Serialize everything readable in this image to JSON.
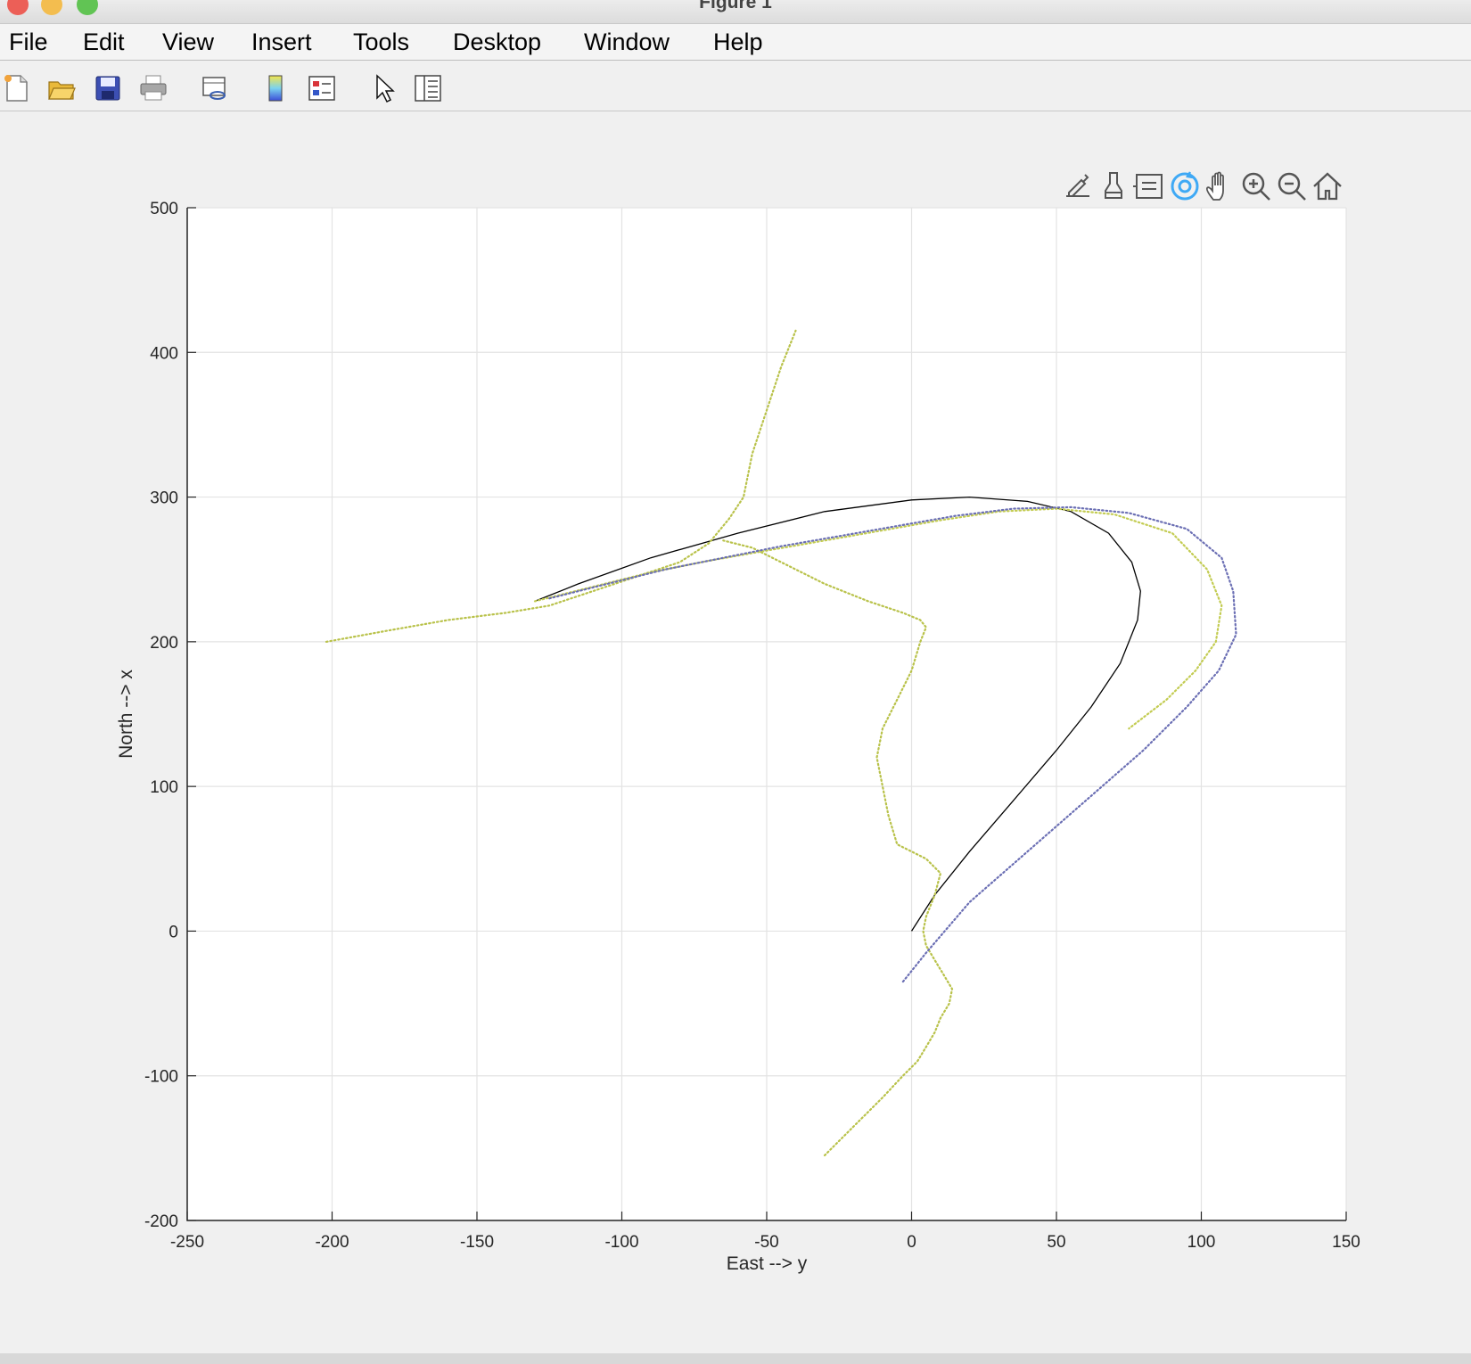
{
  "window": {
    "title": "Figure 1"
  },
  "menu": {
    "items": [
      "File",
      "Edit",
      "View",
      "Insert",
      "Tools",
      "Desktop",
      "Window",
      "Help"
    ]
  },
  "toolbar": {
    "icons": [
      "new-figure-icon",
      "open-file-icon",
      "save-icon",
      "print-icon",
      "link-plot-icon",
      "insert-colorbar-icon",
      "insert-legend-icon",
      "edit-plot-icon",
      "property-inspector-icon"
    ]
  },
  "axes_toolbar": {
    "icons": [
      "brush-export-icon",
      "data-brush-icon",
      "data-tips-icon",
      "rotate-3d-icon",
      "pan-icon",
      "zoom-in-icon",
      "zoom-out-icon",
      "restore-view-icon"
    ],
    "active": "rotate-3d-icon",
    "active_color": "#3fa9f5"
  },
  "chart_data": {
    "type": "line",
    "xlabel": "East --> y",
    "ylabel": "North --> x",
    "xlim": [
      -250,
      150
    ],
    "ylim": [
      -200,
      500
    ],
    "xticks": [
      -250,
      -200,
      -150,
      -100,
      -50,
      0,
      50,
      100,
      150
    ],
    "yticks": [
      -200,
      -100,
      0,
      100,
      200,
      300,
      400,
      500
    ],
    "xtick_labels": [
      "-250",
      "-200",
      "-150",
      "-100",
      "-50",
      "0",
      "50",
      "100",
      "150"
    ],
    "ytick_labels": [
      "-200",
      "-100",
      "0",
      "100",
      "200",
      "300",
      "400",
      "500"
    ],
    "grid": true,
    "series": [
      {
        "style": "solid",
        "color": "#000000",
        "x": [
          0,
          8,
          20,
          35,
          50,
          62,
          72,
          78,
          79,
          76,
          68,
          55,
          40,
          20,
          0,
          -30,
          -60,
          -90,
          -115,
          -130
        ],
        "y": [
          0,
          25,
          55,
          90,
          125,
          155,
          185,
          215,
          235,
          255,
          275,
          290,
          297,
          300,
          298,
          290,
          275,
          258,
          240,
          228
        ]
      },
      {
        "style": "dotted",
        "color": "#b9c24a",
        "x": [
          -30,
          -20,
          -10,
          -3,
          2,
          5,
          8,
          10,
          13,
          14,
          11,
          8,
          5,
          4,
          5,
          8,
          10,
          5,
          -5,
          -8,
          -12,
          -10,
          -5,
          0,
          3,
          5,
          3,
          -3,
          -15,
          -30,
          -45,
          -55,
          -65
        ],
        "y": [
          -155,
          -135,
          -115,
          -100,
          -90,
          -80,
          -70,
          -60,
          -50,
          -40,
          -30,
          -20,
          -10,
          0,
          10,
          25,
          40,
          50,
          60,
          80,
          120,
          140,
          160,
          180,
          200,
          210,
          215,
          220,
          228,
          240,
          255,
          265,
          270
        ]
      },
      {
        "style": "dotted",
        "color": "#b9c24a",
        "x": [
          -202,
          -180,
          -160,
          -140,
          -125,
          -110,
          -95,
          -80,
          -70,
          -63,
          -58,
          -55,
          -50,
          -45,
          -40
        ],
        "y": [
          200,
          208,
          215,
          220,
          225,
          235,
          245,
          255,
          268,
          285,
          300,
          330,
          360,
          390,
          415
        ]
      },
      {
        "style": "dotted",
        "color": "#c3cc52",
        "x": [
          -130,
          -110,
          -90,
          -70,
          -50,
          -30,
          -10,
          10,
          30,
          50,
          70,
          90,
          102,
          107,
          105,
          98,
          88,
          75
        ],
        "y": [
          228,
          238,
          248,
          256,
          263,
          270,
          277,
          284,
          290,
          292,
          288,
          275,
          250,
          225,
          200,
          180,
          160,
          140
        ]
      },
      {
        "style": "dotted",
        "color": "#6b6fb4",
        "x": [
          -125,
          -105,
          -85,
          -65,
          -45,
          -25,
          -5,
          15,
          35,
          55,
          75,
          95,
          107,
          111,
          112,
          106,
          95,
          80,
          60,
          40,
          20,
          5,
          -3
        ],
        "y": [
          230,
          240,
          250,
          258,
          266,
          273,
          280,
          287,
          292,
          293,
          289,
          278,
          258,
          235,
          205,
          180,
          155,
          125,
          90,
          55,
          20,
          -15,
          -35
        ]
      }
    ]
  }
}
